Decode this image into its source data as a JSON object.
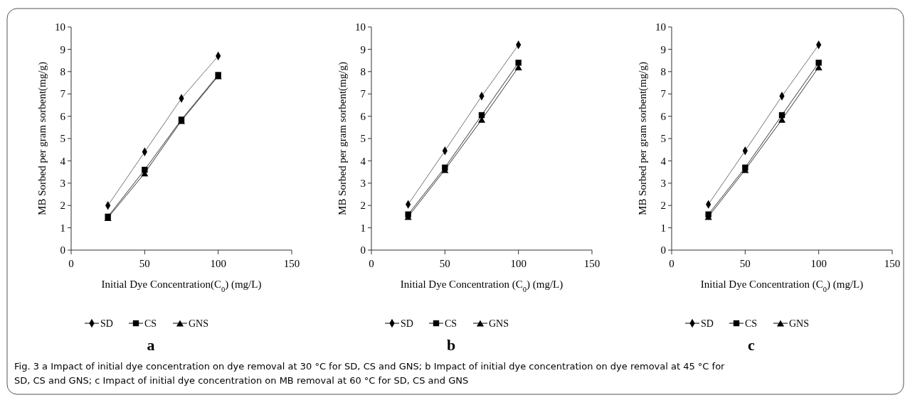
{
  "chart_data": [
    {
      "type": "line",
      "title": "a",
      "xlabel": "Initial Dye Concentration(C$_{0}$) (mg/L)",
      "ylabel": "MB Sorbed per gram sorbent(mg/g)",
      "x": [
        25,
        50,
        75,
        100
      ],
      "xlim": [
        0,
        150
      ],
      "xticks": [
        0,
        50,
        100,
        150
      ],
      "ylim": [
        0,
        10
      ],
      "yticks": [
        0,
        1,
        2,
        3,
        4,
        5,
        6,
        7,
        8,
        9,
        10
      ],
      "legend": "bottom",
      "grid": false,
      "series": [
        {
          "name": "SD",
          "color": "#000000",
          "marker": "diamond",
          "values": [
            2.0,
            4.4,
            6.8,
            8.7
          ]
        },
        {
          "name": "CS",
          "color": "#000000",
          "marker": "square",
          "values": [
            1.5,
            3.6,
            5.85,
            7.85
          ]
        },
        {
          "name": "GNS",
          "color": "#000000",
          "marker": "triangle",
          "values": [
            1.45,
            3.45,
            5.8,
            7.8
          ]
        }
      ],
      "annotations": [
        "Fig. 3  a Impact of initial dye concentration on dye removal at 30 °C for SD, CS and GNS; b Impact of initial dye concentration on dye removal at 45 °C for SD, CS and GNS; c Impact of initial dye concentration on MB removal at 60 °C for SD, CS and GNS"
      ]
    },
    {
      "type": "line",
      "title": "b",
      "xlabel": "Initial Dye Concentration (C$_{0}$) (mg/L)",
      "ylabel": "MB Sorbed per gram sorbent(mg/g)",
      "x": [
        25,
        50,
        75,
        100
      ],
      "xlim": [
        0,
        150
      ],
      "xticks": [
        0,
        50,
        100,
        150
      ],
      "ylim": [
        0,
        10
      ],
      "yticks": [
        0,
        1,
        2,
        3,
        4,
        5,
        6,
        7,
        8,
        9,
        10
      ],
      "legend": "bottom",
      "grid": false,
      "series": [
        {
          "name": "SD",
          "color": "#000000",
          "marker": "diamond",
          "values": [
            2.05,
            4.45,
            6.9,
            9.2
          ]
        },
        {
          "name": "CS",
          "color": "#000000",
          "marker": "square",
          "values": [
            1.6,
            3.7,
            6.05,
            8.4
          ]
        },
        {
          "name": "GNS",
          "color": "#000000",
          "marker": "triangle",
          "values": [
            1.5,
            3.6,
            5.85,
            8.2
          ]
        }
      ]
    },
    {
      "type": "line",
      "title": "c",
      "xlabel": "Initial Dye Concentration (C$_{0}$) (mg/L)",
      "ylabel": "MB Sorbed per gram sorbent(mg/g)",
      "x": [
        25,
        50,
        75,
        100
      ],
      "xlim": [
        0,
        150
      ],
      "xticks": [
        0,
        50,
        100,
        150
      ],
      "ylim": [
        0,
        10
      ],
      "yticks": [
        0,
        1,
        2,
        3,
        4,
        5,
        6,
        7,
        8,
        9,
        10
      ],
      "legend": "bottom",
      "grid": false,
      "series": [
        {
          "name": "SD",
          "color": "#000000",
          "marker": "diamond",
          "values": [
            2.05,
            4.45,
            6.9,
            9.2
          ]
        },
        {
          "name": "CS",
          "color": "#000000",
          "marker": "square",
          "values": [
            1.6,
            3.7,
            6.05,
            8.4
          ]
        },
        {
          "name": "GNS",
          "color": "#000000",
          "marker": "triangle",
          "values": [
            1.5,
            3.6,
            5.85,
            8.2
          ]
        }
      ]
    }
  ]
}
